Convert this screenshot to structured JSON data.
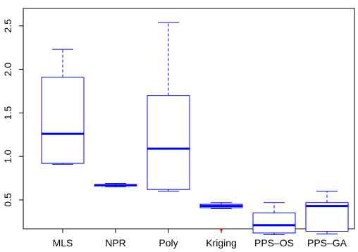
{
  "chart_data": {
    "type": "boxplot",
    "title": "",
    "xlabel": "",
    "ylabel": "",
    "ylim": [
      0.0,
      2.68
    ],
    "yticks": [
      0.5,
      1.0,
      1.5,
      2.0,
      2.5
    ],
    "ytick_labels": [
      "0.5",
      "1.0",
      "1.5",
      "2.0",
      "2.5"
    ],
    "grid": false,
    "box_color": "#0000ff",
    "outlier_color": "#ff0000",
    "categories": [
      "MLS",
      "NPR",
      "Poly",
      "Kriging",
      "PPS–OS",
      "PPS–GA"
    ],
    "boxes": [
      {
        "whisker_low": 0.91,
        "q1": 0.92,
        "median": 1.26,
        "q3": 1.91,
        "whisker_high": 2.23,
        "outliers": []
      },
      {
        "whisker_low": 0.65,
        "q1": 0.66,
        "median": 0.67,
        "q3": 0.67,
        "whisker_high": 0.69,
        "outliers": []
      },
      {
        "whisker_low": 0.6,
        "q1": 0.62,
        "median": 1.09,
        "q3": 1.7,
        "whisker_high": 2.54,
        "outliers": []
      },
      {
        "whisker_low": 0.4,
        "q1": 0.41,
        "median": 0.43,
        "q3": 0.45,
        "whisker_high": 0.47,
        "outliers": [
          0.16
        ]
      },
      {
        "whisker_low": 0.1,
        "q1": 0.12,
        "median": 0.21,
        "q3": 0.35,
        "whisker_high": 0.47,
        "outliers": []
      },
      {
        "whisker_low": 0.11,
        "q1": 0.14,
        "median": 0.43,
        "q3": 0.47,
        "whisker_high": 0.6,
        "outliers": []
      }
    ]
  }
}
